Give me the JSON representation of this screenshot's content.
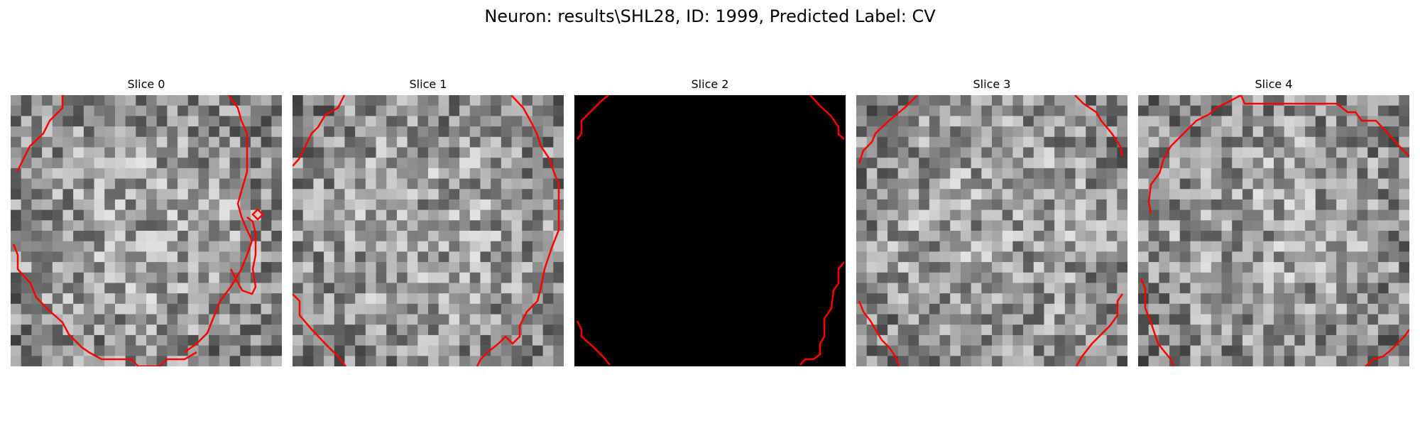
{
  "figure": {
    "suptitle": "Neuron: results\\SHL28, ID: 1999, Predicted Label: CV",
    "contour_color": "#ff0000",
    "background": "#ffffff"
  },
  "slices": [
    {
      "title": "Slice 0",
      "colormap": "gray",
      "image": "noise",
      "contour": true
    },
    {
      "title": "Slice 1",
      "colormap": "gray",
      "image": "noise",
      "contour": true
    },
    {
      "title": "Slice 2",
      "colormap": "gray",
      "image": "black",
      "contour": true
    },
    {
      "title": "Slice 3",
      "colormap": "gray",
      "image": "noise",
      "contour": true
    },
    {
      "title": "Slice 4",
      "colormap": "gray",
      "image": "noise",
      "contour": true
    }
  ]
}
